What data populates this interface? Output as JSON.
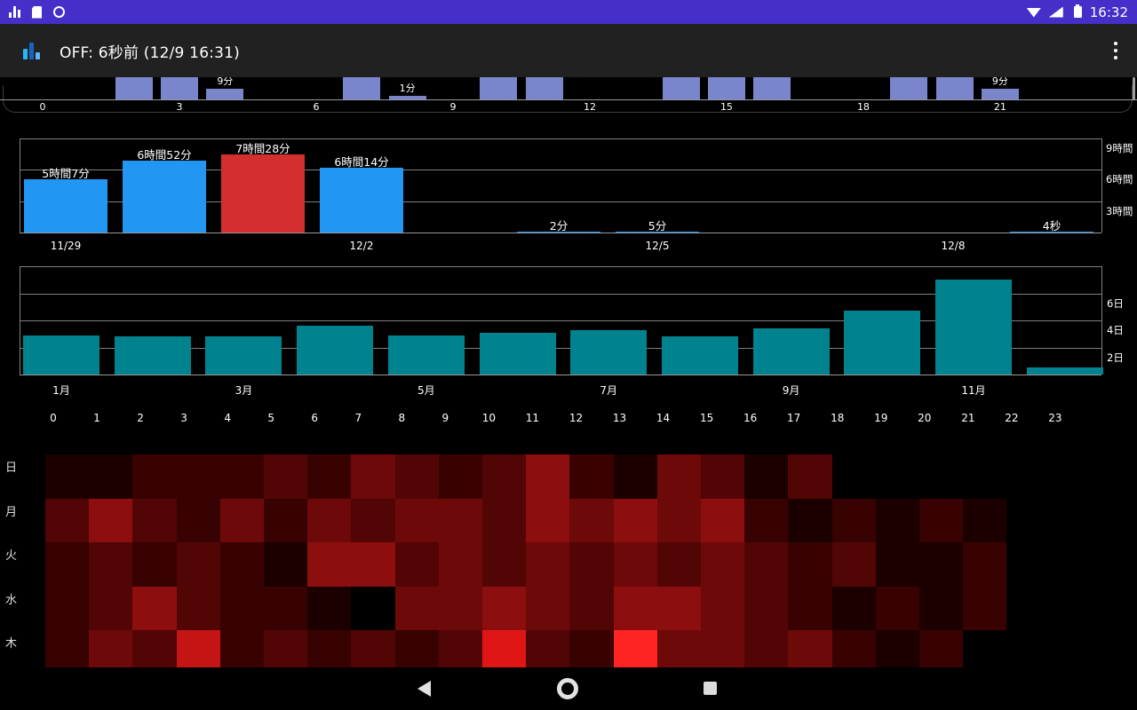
{
  "status_bar": {
    "time": "16:32",
    "bg": "#4430C9",
    "left_icons": [
      "bar-chart-notification",
      "sd-card-notification",
      "circle-notification"
    ],
    "right_icons": [
      "wifi",
      "cell-signal",
      "battery"
    ]
  },
  "app_bar": {
    "title": "OFF: 6秒前 (12/9 16:31)",
    "bg": "#212121"
  },
  "nav_bar": {
    "icons": [
      "back",
      "home",
      "recents"
    ]
  },
  "colors": {
    "background": "#000000",
    "hourly_bar": "#7986CB",
    "daily_bar": "#2196F3",
    "daily_bar_highlight": "#D32F2F",
    "monthly_bar": "#00838F",
    "grid_line": "#7f7f7f",
    "axis_line": "#9a9a9a",
    "axis_text": "#ffffff"
  },
  "chart_data": [
    {
      "id": "hourly_usage_today",
      "type": "bar",
      "note": "top of chart clipped by app bar; unlabeled bar minutes are estimates",
      "x_ticks": [
        "0",
        "3",
        "6",
        "9",
        "12",
        "15",
        "18",
        "21"
      ],
      "bars": [
        {
          "hour": 2,
          "minutes": 45,
          "clipped": true
        },
        {
          "hour": 3,
          "minutes": 50,
          "clipped": true
        },
        {
          "hour": 4,
          "minutes": 9,
          "label": "9分"
        },
        {
          "hour": 7,
          "minutes": 40,
          "clipped": true
        },
        {
          "hour": 8,
          "minutes": 1,
          "label": "1分"
        },
        {
          "hour": 10,
          "minutes": 35,
          "clipped": true
        },
        {
          "hour": 11,
          "minutes": 50,
          "clipped": true
        },
        {
          "hour": 14,
          "minutes": 30,
          "clipped": true
        },
        {
          "hour": 15,
          "minutes": 60,
          "clipped": true
        },
        {
          "hour": 16,
          "minutes": 45,
          "clipped": true
        },
        {
          "hour": 19,
          "minutes": 40,
          "clipped": true
        },
        {
          "hour": 20,
          "minutes": 55,
          "clipped": true
        },
        {
          "hour": 21,
          "minutes": 9,
          "label": "9分"
        }
      ]
    },
    {
      "id": "daily_usage",
      "type": "bar",
      "ylabels": [
        "9時間",
        "6時間",
        "3時間"
      ],
      "x_ticks": [
        {
          "slot": 0,
          "label": "11/29"
        },
        {
          "slot": 3,
          "label": "12/2"
        },
        {
          "slot": 6,
          "label": "12/5"
        },
        {
          "slot": 9,
          "label": "12/8"
        }
      ],
      "bars": [
        {
          "slot": 0,
          "hours": 5.117,
          "label": "5時間7分",
          "color": "blue"
        },
        {
          "slot": 1,
          "hours": 6.867,
          "label": "6時間52分",
          "color": "blue"
        },
        {
          "slot": 2,
          "hours": 7.467,
          "label": "7時間28分",
          "color": "red"
        },
        {
          "slot": 3,
          "hours": 6.233,
          "label": "6時間14分",
          "color": "blue"
        },
        {
          "slot": 5,
          "hours": 0.033,
          "label": "2分",
          "color": "blue"
        },
        {
          "slot": 6,
          "hours": 0.083,
          "label": "5分",
          "color": "blue"
        },
        {
          "slot": 10,
          "hours": 0.001,
          "label": "4秒",
          "color": "blue"
        }
      ]
    },
    {
      "id": "monthly_usage",
      "type": "bar",
      "note": "values in days, estimated from gridlines",
      "ylabels": [
        "6日",
        "4日",
        "2日"
      ],
      "x_ticks": [
        {
          "slot": 0,
          "label": "1月"
        },
        {
          "slot": 2,
          "label": "3月"
        },
        {
          "slot": 4,
          "label": "5月"
        },
        {
          "slot": 6,
          "label": "7月"
        },
        {
          "slot": 8,
          "label": "9月"
        },
        {
          "slot": 10,
          "label": "11月"
        }
      ],
      "values_days": [
        2.9,
        2.8,
        2.8,
        3.6,
        2.9,
        3.1,
        3.3,
        2.8,
        3.4,
        4.7,
        7.0,
        0.5
      ]
    },
    {
      "id": "weekday_hour_heatmap",
      "type": "heatmap",
      "note": "intensity 0-10 estimated from cell brightness; rows below 木 clipped by nav bar",
      "hour_labels": [
        "0",
        "1",
        "2",
        "3",
        "4",
        "5",
        "6",
        "7",
        "8",
        "9",
        "10",
        "11",
        "12",
        "13",
        "14",
        "15",
        "16",
        "17",
        "18",
        "19",
        "20",
        "21",
        "22",
        "23"
      ],
      "row_labels": [
        "日",
        "月",
        "火",
        "水",
        "木"
      ],
      "palette": [
        "#000000",
        "#1c0000",
        "#380202",
        "#520505",
        "#6e0909",
        "#8c0e0e",
        "#a81111",
        "#c41414",
        "#e01616",
        "#f21919",
        "#ff2424"
      ],
      "grid": [
        [
          1,
          1,
          2,
          2,
          2,
          3,
          2,
          4,
          3,
          2,
          3,
          5,
          2,
          1,
          4,
          3,
          1,
          3,
          0,
          0,
          0,
          0,
          0,
          0
        ],
        [
          3,
          5,
          3,
          2,
          4,
          2,
          4,
          3,
          4,
          4,
          3,
          5,
          4,
          5,
          4,
          5,
          2,
          1,
          2,
          1,
          2,
          1,
          0,
          0
        ],
        [
          2,
          3,
          2,
          3,
          2,
          1,
          5,
          5,
          3,
          4,
          3,
          4,
          3,
          4,
          3,
          4,
          3,
          2,
          3,
          1,
          1,
          2,
          0,
          0
        ],
        [
          2,
          3,
          5,
          3,
          2,
          2,
          1,
          0,
          4,
          4,
          5,
          4,
          3,
          5,
          5,
          4,
          3,
          2,
          1,
          2,
          1,
          2,
          0,
          0
        ],
        [
          2,
          4,
          3,
          7,
          2,
          3,
          2,
          3,
          2,
          3,
          8,
          3,
          2,
          10,
          4,
          4,
          3,
          4,
          2,
          1,
          2,
          0,
          0,
          0
        ]
      ]
    }
  ]
}
